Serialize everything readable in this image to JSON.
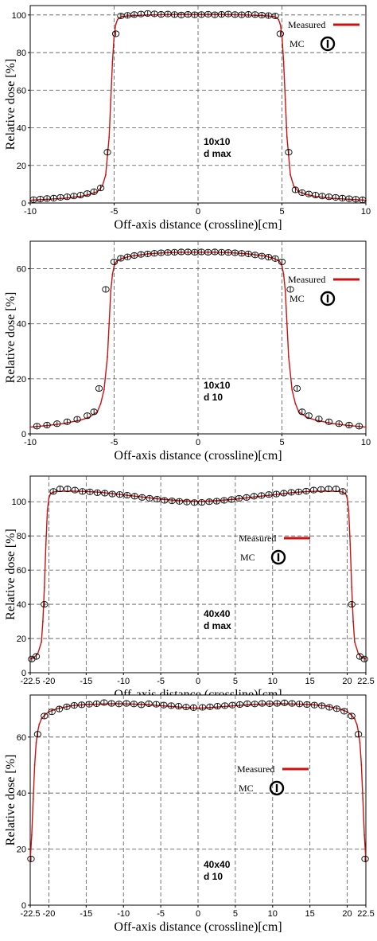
{
  "chart_data": [
    {
      "type": "line",
      "xlabel": "Off-axis distance (crossline)[cm]",
      "ylabel": "Relative dose [%]",
      "xlim": [
        -10,
        10
      ],
      "ylim": [
        0,
        105
      ],
      "xticks": [
        -10,
        -5,
        0,
        5,
        10
      ],
      "xtick_labels": [
        "-10",
        "-5",
        "0",
        "5",
        "10"
      ],
      "yticks": [
        0,
        20,
        40,
        60,
        80,
        100
      ],
      "grid": true,
      "annotation": [
        "10x10",
        "d max"
      ],
      "legend": {
        "position": "top-right",
        "entries": [
          "Measured",
          "MC"
        ]
      },
      "colors": {
        "measured": "#cc1111",
        "mc": "#000000"
      },
      "series": [
        {
          "name": "Measured",
          "x": [
            -10,
            -9,
            -8,
            -7,
            -6.5,
            -6,
            -5.7,
            -5.5,
            -5.3,
            -5.2,
            -5.1,
            -5,
            -4.9,
            -4.8,
            -4.7,
            -4.5,
            -4,
            -3,
            -2,
            -1,
            0,
            1,
            2,
            3,
            4,
            4.5,
            4.7,
            4.8,
            4.9,
            5,
            5.1,
            5.2,
            5.3,
            5.5,
            5.7,
            6,
            6.5,
            7,
            8,
            9,
            10
          ],
          "y": [
            1.5,
            2,
            2.5,
            3.5,
            4.5,
            6,
            9,
            15,
            35,
            55,
            75,
            89,
            95,
            97.5,
            98.5,
            99.2,
            99.6,
            100,
            100.2,
            100.3,
            100.2,
            100.3,
            100.2,
            100,
            99.6,
            99.2,
            98.5,
            97.5,
            95,
            89,
            75,
            55,
            35,
            15,
            9,
            6,
            4.5,
            3.5,
            2.5,
            2,
            1.5
          ]
        },
        {
          "name": "MC",
          "x": [
            -9.8,
            -9.4,
            -9,
            -8.6,
            -8.2,
            -7.8,
            -7.4,
            -7,
            -6.6,
            -6.2,
            -5.8,
            -5.4,
            -4.9,
            -4.6,
            -4.2,
            -3.8,
            -3.4,
            -3,
            -2.6,
            -2.2,
            -1.8,
            -1.4,
            -1,
            -0.6,
            -0.2,
            0.2,
            0.6,
            1,
            1.4,
            1.8,
            2.2,
            2.6,
            3,
            3.4,
            3.8,
            4.2,
            4.6,
            4.9,
            5.4,
            5.8,
            6.2,
            6.6,
            7,
            7.4,
            7.8,
            8.2,
            8.6,
            9,
            9.4,
            9.8
          ],
          "y": [
            1.8,
            2.1,
            2.4,
            2.6,
            3,
            3.3,
            3.7,
            4.2,
            5,
            6,
            8,
            27,
            90,
            99.5,
            99.8,
            100.2,
            100.5,
            100.8,
            100.6,
            100.3,
            100.5,
            100.2,
            100,
            100.3,
            100.1,
            100.2,
            100.4,
            100.1,
            100.3,
            100.5,
            100.2,
            100.1,
            100.3,
            100.2,
            99.9,
            99.7,
            99.5,
            90,
            27,
            7,
            5.5,
            4.8,
            4.2,
            3.7,
            3.3,
            3,
            2.6,
            2.3,
            2,
            1.7
          ]
        }
      ]
    },
    {
      "type": "line",
      "xlabel": "Off-axis distance (crossline)[cm]",
      "ylabel": "Relative dose [%]",
      "xlim": [
        -10,
        10
      ],
      "ylim": [
        0,
        70
      ],
      "xticks": [
        -10,
        -5,
        0,
        5,
        10
      ],
      "xtick_labels": [
        "-10",
        "-5",
        "0",
        "5",
        "10"
      ],
      "yticks": [
        0,
        20,
        40,
        60
      ],
      "grid": true,
      "annotation": [
        "10x10",
        "d 10"
      ],
      "legend": {
        "position": "right",
        "entries": [
          "Measured",
          "MC"
        ]
      },
      "colors": {
        "measured": "#cc1111",
        "mc": "#000000"
      },
      "series": [
        {
          "name": "Measured",
          "x": [
            -10,
            -9,
            -8,
            -7,
            -6.5,
            -6,
            -5.8,
            -5.6,
            -5.4,
            -5.3,
            -5.2,
            -5.1,
            -5,
            -4.9,
            -4.8,
            -4.5,
            -4,
            -3,
            -2,
            -1,
            0,
            1,
            2,
            3,
            4,
            4.5,
            4.8,
            4.9,
            5,
            5.1,
            5.2,
            5.3,
            5.4,
            5.6,
            5.8,
            6,
            6.5,
            7,
            8,
            9,
            10
          ],
          "y": [
            2.5,
            3,
            3.8,
            5,
            6,
            8,
            11,
            16,
            28,
            40,
            52,
            58,
            61,
            62.3,
            63,
            63.8,
            64.6,
            65.4,
            65.8,
            66,
            66,
            66,
            65.8,
            65.4,
            64.6,
            63.8,
            63,
            62.3,
            61,
            58,
            52,
            40,
            28,
            16,
            11,
            8,
            6,
            5,
            3.8,
            3,
            2.5
          ]
        },
        {
          "name": "MC",
          "x": [
            -9.6,
            -9,
            -8.4,
            -7.8,
            -7.2,
            -6.6,
            -6.2,
            -5.9,
            -5.5,
            -5,
            -4.6,
            -4.2,
            -3.8,
            -3.4,
            -3,
            -2.6,
            -2.2,
            -1.8,
            -1.4,
            -1,
            -0.6,
            -0.2,
            0.2,
            0.6,
            1,
            1.4,
            1.8,
            2.2,
            2.6,
            3,
            3.4,
            3.8,
            4.2,
            4.6,
            5,
            5.5,
            5.9,
            6.2,
            6.6,
            7.2,
            7.8,
            8.4,
            9,
            9.6
          ],
          "y": [
            2.8,
            3.2,
            3.7,
            4.4,
            5.3,
            6.6,
            8,
            16.5,
            52.5,
            62.5,
            63.8,
            64.3,
            64.8,
            65.2,
            65.4,
            65.6,
            65.8,
            65.9,
            66,
            66.1,
            66.1,
            66,
            66.1,
            66,
            66.1,
            66,
            65.9,
            65.8,
            65.6,
            65.4,
            65,
            64.6,
            64.2,
            63.7,
            62.5,
            52.5,
            16.5,
            8,
            6.6,
            5.4,
            4.4,
            3.7,
            3.2,
            2.8
          ]
        }
      ]
    },
    {
      "type": "line",
      "xlabel": "Off-axis distance (crossline)[cm]",
      "ylabel": "Relative dose [%]",
      "xlim": [
        -22.5,
        22.5
      ],
      "ylim": [
        0,
        115
      ],
      "xticks": [
        -22.5,
        -20,
        -15,
        -10,
        -5,
        0,
        5,
        10,
        15,
        20,
        22.5
      ],
      "xtick_labels": [
        "-22.5",
        "-20",
        "-15",
        "-10",
        "-5",
        "0",
        "5",
        "10",
        "15",
        "20",
        "22.5"
      ],
      "yticks": [
        0,
        20,
        40,
        60,
        80,
        100
      ],
      "grid": true,
      "annotation": [
        "40x40",
        "d max"
      ],
      "legend": {
        "position": "right",
        "entries": [
          "Measured",
          "MC"
        ]
      },
      "colors": {
        "measured": "#cc1111",
        "mc": "#000000"
      },
      "series": [
        {
          "name": "Measured",
          "x": [
            -22.5,
            -22,
            -21.5,
            -21,
            -20.8,
            -20.6,
            -20.4,
            -20.2,
            -20,
            -19.8,
            -19.5,
            -19,
            -17,
            -15,
            -13,
            -11,
            -9,
            -7,
            -5,
            -3,
            -1,
            0,
            1,
            3,
            5,
            7,
            9,
            11,
            13,
            15,
            17,
            19,
            19.5,
            19.8,
            20,
            20.2,
            20.4,
            20.6,
            20.8,
            21,
            21.5,
            22,
            22.5
          ],
          "y": [
            8,
            9,
            11,
            18,
            30,
            50,
            75,
            95,
            102,
            104.5,
            105.5,
            106,
            106.2,
            106,
            105.5,
            104.5,
            103.5,
            102.5,
            101.5,
            100.8,
            100.3,
            100.2,
            100.3,
            100.8,
            101.5,
            102.5,
            103.5,
            104.5,
            105.5,
            106,
            106.2,
            106,
            105.5,
            104.5,
            102,
            95,
            75,
            50,
            30,
            18,
            11,
            9,
            8
          ]
        },
        {
          "name": "MC",
          "x": [
            -22.3,
            -21.7,
            -20.6,
            -19.4,
            -18.5,
            -17.5,
            -16.5,
            -15.5,
            -14.5,
            -13.5,
            -12.5,
            -11.5,
            -10.5,
            -9.5,
            -8.5,
            -7.5,
            -6.5,
            -5.5,
            -4.5,
            -3.5,
            -2.5,
            -1.5,
            -0.5,
            0.5,
            1.5,
            2.5,
            3.5,
            4.5,
            5.5,
            6.5,
            7.5,
            8.5,
            9.5,
            10.5,
            11.5,
            12.5,
            13.5,
            14.5,
            15.5,
            16.5,
            17.5,
            18.5,
            19.4,
            20.6,
            21.7,
            22.3
          ],
          "y": [
            8,
            9.5,
            40,
            106,
            107.5,
            107.5,
            106.8,
            106,
            105.8,
            105.3,
            105,
            104.5,
            104.2,
            103.8,
            103.2,
            102.5,
            102,
            101.5,
            100.8,
            100.5,
            100.2,
            99.8,
            99.5,
            99.6,
            100,
            100.3,
            100.8,
            101.3,
            102,
            102.5,
            103.2,
            103.6,
            104.2,
            104.5,
            105,
            105.5,
            105.8,
            106.2,
            106.8,
            107.2,
            107.5,
            107.5,
            106,
            40,
            9.5,
            8
          ]
        }
      ]
    },
    {
      "type": "line",
      "xlabel": "Off-axis distance (crossline)[cm]",
      "ylabel": "Relative dose [%]",
      "xlim": [
        -22.5,
        22.5
      ],
      "ylim": [
        0,
        75
      ],
      "xticks": [
        -22.5,
        -20,
        -15,
        -10,
        -5,
        0,
        5,
        10,
        15,
        20,
        22.5
      ],
      "xtick_labels": [
        "-22.5",
        "-20",
        "-15",
        "-10",
        "-5",
        "0",
        "5",
        "10",
        "15",
        "20",
        "22.5"
      ],
      "yticks": [
        0,
        20,
        40,
        60
      ],
      "grid": true,
      "annotation": [
        "40x40",
        "d 10"
      ],
      "legend": {
        "position": "right",
        "entries": [
          "Measured",
          "MC"
        ]
      },
      "colors": {
        "measured": "#cc1111",
        "mc": "#000000"
      },
      "series": [
        {
          "name": "Measured",
          "x": [
            -22.5,
            -22.3,
            -22.1,
            -21.9,
            -21.7,
            -21.5,
            -21.3,
            -21,
            -20.5,
            -20,
            -19,
            -18,
            -17,
            -15,
            -13,
            -11,
            -9,
            -7,
            -5,
            -3,
            -1,
            0,
            1,
            3,
            5,
            7,
            9,
            11,
            13,
            15,
            17,
            18,
            19,
            20,
            20.5,
            21,
            21.3,
            21.5,
            21.7,
            21.9,
            22.1,
            22.3,
            22.5
          ],
          "y": [
            16,
            25,
            38,
            50,
            58,
            62,
            64.5,
            66.5,
            68,
            69,
            70,
            70.6,
            71.2,
            71.6,
            71.8,
            71.9,
            71.8,
            71.6,
            71.2,
            70.8,
            70.4,
            70.3,
            70.4,
            70.8,
            71.2,
            71.6,
            71.8,
            71.9,
            71.8,
            71.6,
            71.2,
            70.6,
            70,
            69,
            68,
            66.5,
            64.5,
            62,
            58,
            50,
            38,
            25,
            16
          ]
        },
        {
          "name": "MC",
          "x": [
            -22.4,
            -21.5,
            -20.6,
            -19.6,
            -18.6,
            -17.6,
            -16.6,
            -15.6,
            -14.6,
            -13.6,
            -12.6,
            -11.6,
            -10.6,
            -9.6,
            -8.6,
            -7.6,
            -6.6,
            -5.6,
            -4.6,
            -3.6,
            -2.6,
            -1.6,
            -0.6,
            0.6,
            1.6,
            2.6,
            3.6,
            4.6,
            5.6,
            6.6,
            7.6,
            8.6,
            9.6,
            10.6,
            11.6,
            12.6,
            13.6,
            14.6,
            15.6,
            16.6,
            17.6,
            18.6,
            19.6,
            20.6,
            21.5,
            22.4
          ],
          "y": [
            16.5,
            61,
            67.5,
            69,
            70,
            70.8,
            71.3,
            71.5,
            71.7,
            71.9,
            72.3,
            72,
            71.8,
            72,
            71.8,
            71.5,
            71.9,
            71.7,
            71.4,
            71.2,
            71,
            70.7,
            70.5,
            70.6,
            70.8,
            71,
            71.2,
            71.4,
            71.6,
            71.9,
            71.8,
            72,
            71.9,
            72,
            72.2,
            72,
            71.8,
            71.6,
            71.4,
            71.2,
            70.6,
            70.1,
            69.2,
            67.5,
            61,
            16.5
          ]
        }
      ]
    }
  ]
}
